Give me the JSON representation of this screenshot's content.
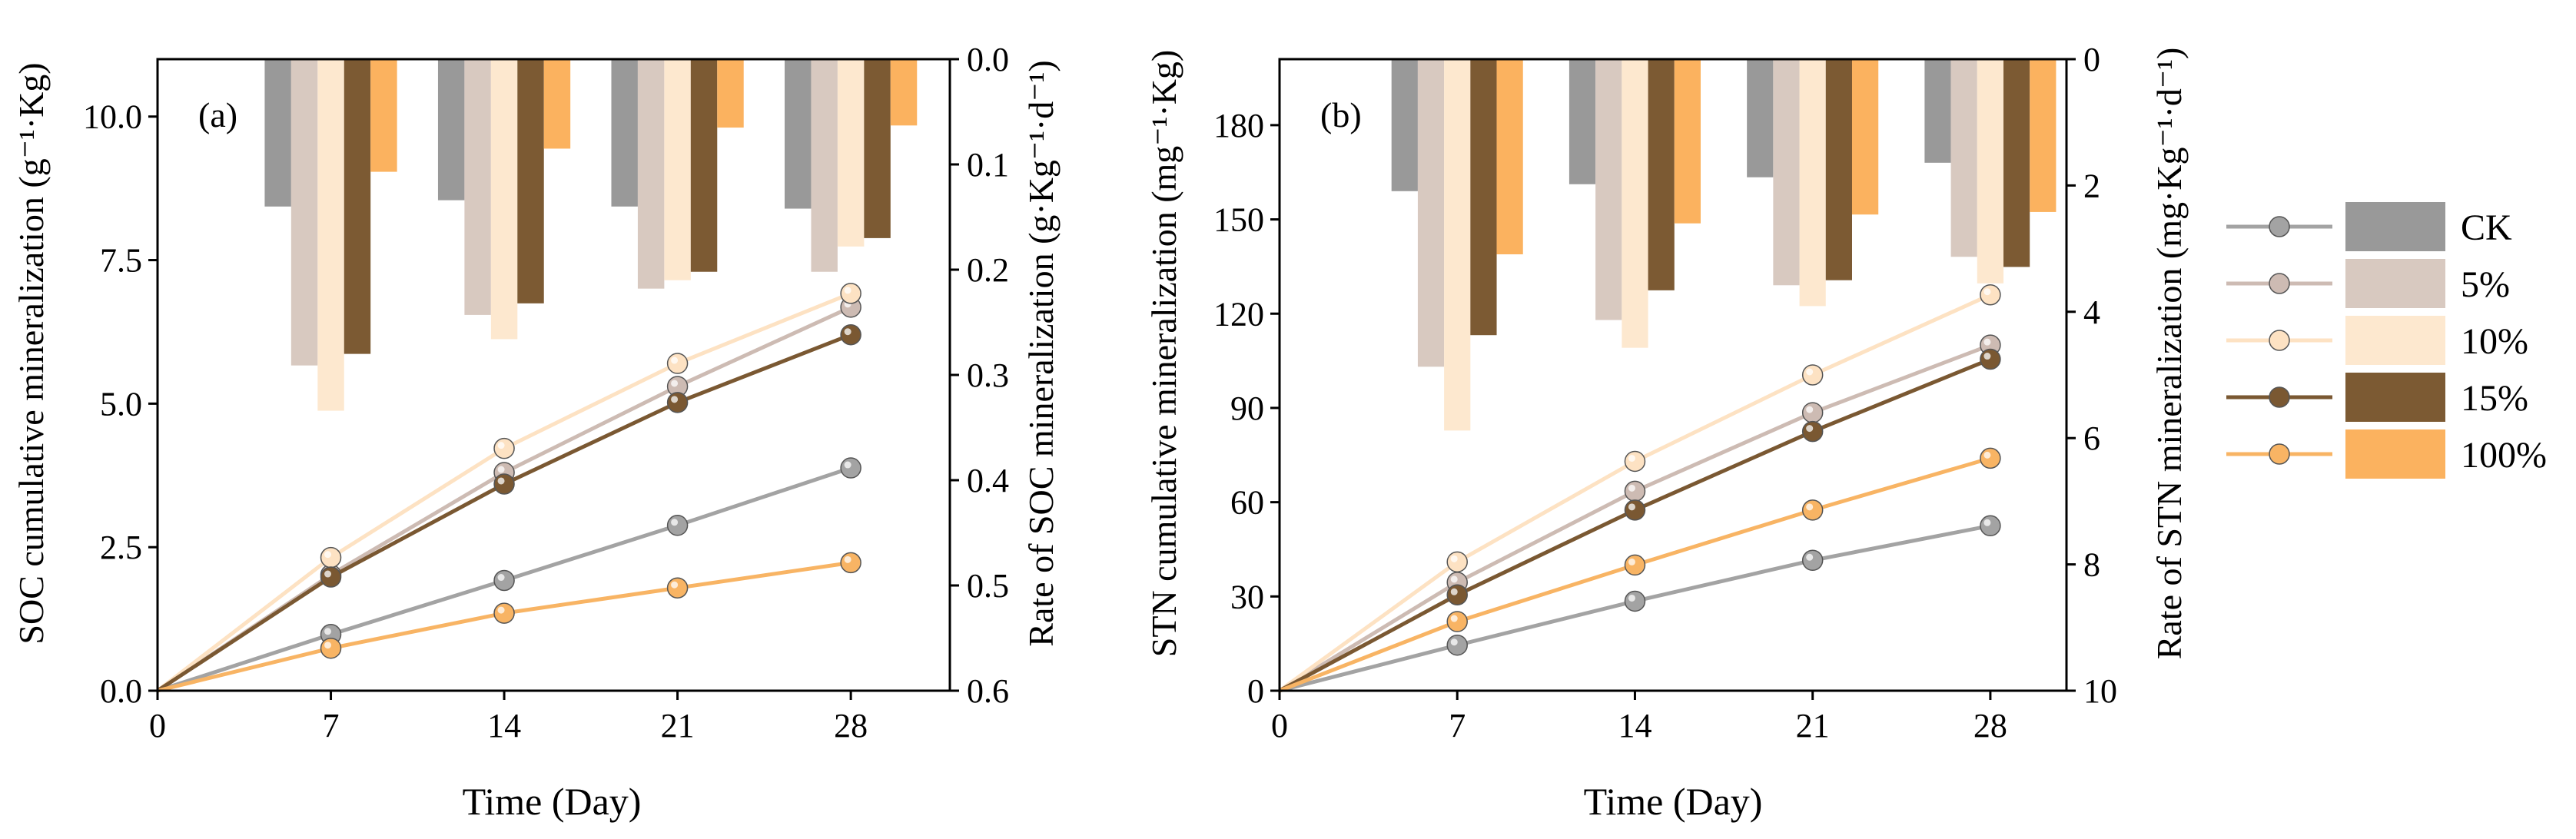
{
  "chart_data": [
    {
      "panel_label": "(a)",
      "type": "line+bar",
      "x": [
        0,
        7,
        14,
        21,
        28
      ],
      "xlabel": "Time (Day)",
      "xlim": [
        0,
        32
      ],
      "xticks": [
        "0",
        "7",
        "14",
        "21",
        "28"
      ],
      "ylabel_left": "SOC cumulative mineralization (g⁻¹·Kg)",
      "ylim_left": [
        0,
        11
      ],
      "yticks_left": [
        "0.0",
        "2.5",
        "5.0",
        "7.5",
        "10.0"
      ],
      "ylabel_right": "Rate of SOC mineralization (g·Kg⁻¹·d⁻¹)",
      "ylim_right": [
        0,
        0.6
      ],
      "right_axis_inverted": true,
      "yticks_right": [
        "0.0",
        "0.1",
        "0.2",
        "0.3",
        "0.4",
        "0.5",
        "0.6"
      ],
      "line_series": [
        {
          "name": "CK",
          "values": [
            0,
            0.98,
            1.92,
            2.88,
            3.88
          ]
        },
        {
          "name": "5%",
          "values": [
            0,
            2.02,
            3.8,
            5.3,
            6.68
          ]
        },
        {
          "name": "10%",
          "values": [
            0,
            2.32,
            4.22,
            5.7,
            6.92
          ]
        },
        {
          "name": "15%",
          "values": [
            0,
            1.98,
            3.6,
            5.02,
            6.2
          ]
        },
        {
          "name": "100%",
          "values": [
            0,
            0.74,
            1.35,
            1.79,
            2.23
          ]
        }
      ],
      "bar_series": [
        {
          "name": "CK",
          "values": [
            0.14,
            0.134,
            0.14,
            0.142
          ]
        },
        {
          "name": "5%",
          "values": [
            0.291,
            0.243,
            0.218,
            0.202
          ]
        },
        {
          "name": "10%",
          "values": [
            0.334,
            0.266,
            0.21,
            0.178
          ]
        },
        {
          "name": "15%",
          "values": [
            0.28,
            0.232,
            0.202,
            0.17
          ]
        },
        {
          "name": "100%",
          "values": [
            0.107,
            0.085,
            0.065,
            0.063
          ]
        }
      ]
    },
    {
      "panel_label": "(b)",
      "type": "line+bar",
      "x": [
        0,
        7,
        14,
        21,
        28
      ],
      "xlabel": "Time (Day)",
      "xlim": [
        0,
        31
      ],
      "xticks": [
        "0",
        "7",
        "14",
        "21",
        "28"
      ],
      "ylabel_left": "STN cumulative mineralization (mg⁻¹·Kg)",
      "ylim_left": [
        0,
        201
      ],
      "yticks_left": [
        "0",
        "30",
        "60",
        "90",
        "120",
        "150",
        "180"
      ],
      "ylabel_right": "Rate of STN mineralization (mg·Kg⁻¹·d⁻¹)",
      "ylim_right": [
        0,
        10
      ],
      "right_axis_inverted": true,
      "yticks_right": [
        "0",
        "2",
        "4",
        "6",
        "8",
        "10"
      ],
      "line_series": [
        {
          "name": "CK",
          "values": [
            0,
            14.5,
            28.5,
            41.5,
            52.5
          ]
        },
        {
          "name": "5%",
          "values": [
            0,
            34.5,
            63.5,
            88.5,
            110
          ]
        },
        {
          "name": "10%",
          "values": [
            0,
            41,
            73,
            100.5,
            126
          ]
        },
        {
          "name": "15%",
          "values": [
            0,
            30.5,
            57.5,
            82.5,
            105.5
          ]
        },
        {
          "name": "100%",
          "values": [
            0,
            22,
            40,
            57.5,
            74
          ]
        }
      ],
      "bar_series": [
        {
          "name": "CK",
          "values": [
            2.09,
            1.98,
            1.87,
            1.64
          ]
        },
        {
          "name": "5%",
          "values": [
            4.87,
            4.13,
            3.58,
            3.13
          ]
        },
        {
          "name": "10%",
          "values": [
            5.88,
            4.57,
            3.91,
            3.55
          ]
        },
        {
          "name": "15%",
          "values": [
            4.37,
            3.66,
            3.5,
            3.29
          ]
        },
        {
          "name": "100%",
          "values": [
            3.09,
            2.6,
            2.46,
            2.42
          ]
        }
      ]
    }
  ],
  "colors": {
    "line": {
      "CK": "#a3a3a3",
      "5%": "#cdbbb3",
      "10%": "#fde2c3",
      "15%": "#7a5832",
      "100%": "#f8b464"
    },
    "bar": {
      "CK": "#999999",
      "5%": "#d8c9c0",
      "10%": "#fde8cf",
      "15%": "#7c5a33",
      "100%": "#fbb25f"
    }
  },
  "legend": {
    "entries": [
      "CK",
      "5%",
      "10%",
      "15%",
      "100%"
    ],
    "position": "right"
  }
}
